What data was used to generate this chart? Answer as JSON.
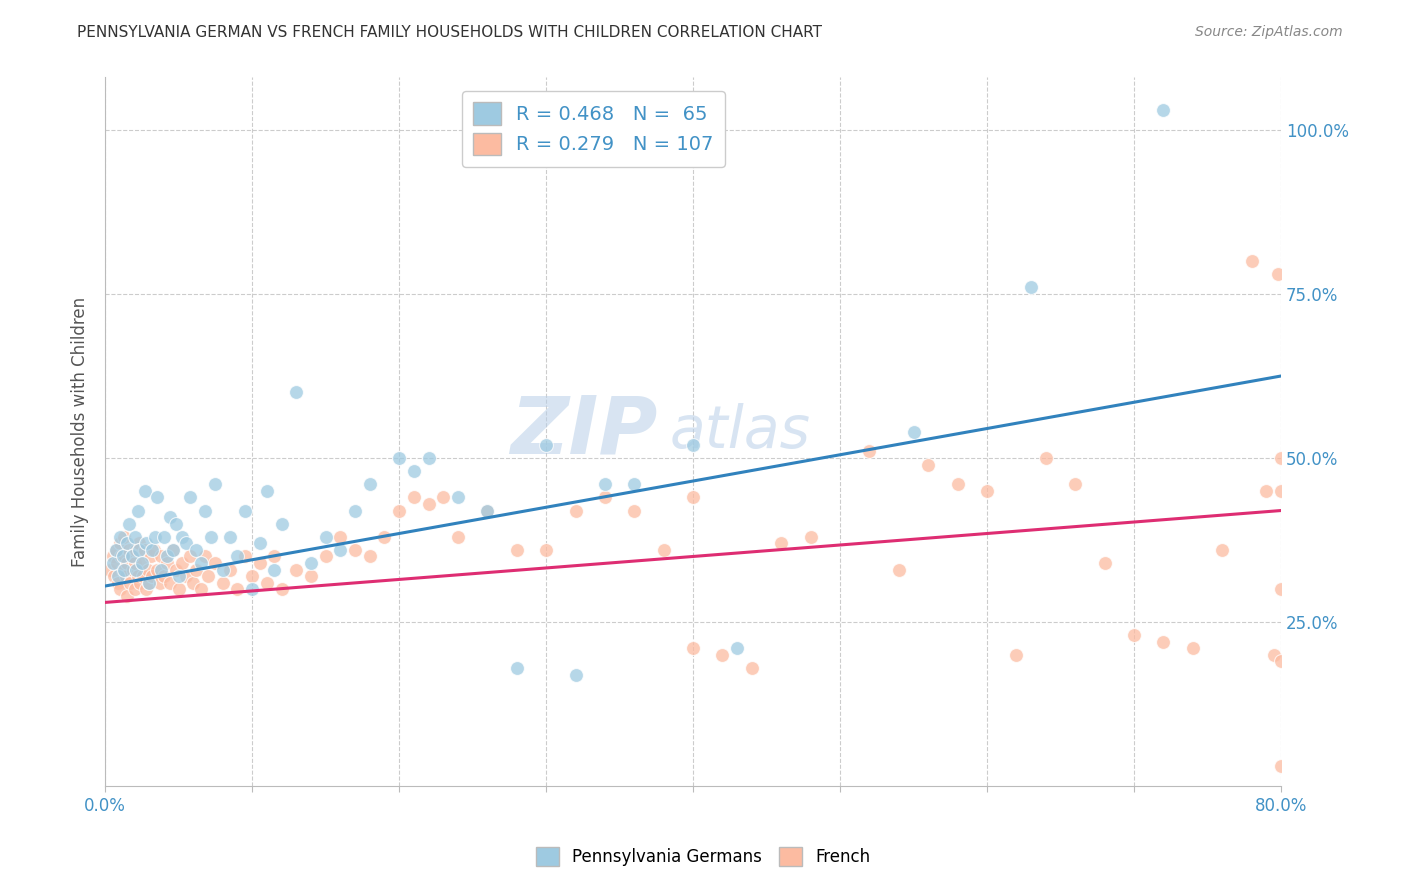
{
  "title": "PENNSYLVANIA GERMAN VS FRENCH FAMILY HOUSEHOLDS WITH CHILDREN CORRELATION CHART",
  "source": "Source: ZipAtlas.com",
  "ylabel": "Family Households with Children",
  "xlim": [
    0.0,
    0.8
  ],
  "ylim": [
    0.0,
    1.08
  ],
  "yticks": [
    0.25,
    0.5,
    0.75,
    1.0
  ],
  "ytick_labels": [
    "25.0%",
    "50.0%",
    "75.0%",
    "100.0%"
  ],
  "xticks": [
    0.0,
    0.1,
    0.2,
    0.3,
    0.4,
    0.5,
    0.6,
    0.7,
    0.8
  ],
  "xtick_labels": [
    "0.0%",
    "",
    "",
    "",
    "",
    "",
    "",
    "",
    "80.0%"
  ],
  "watermark_zip": "ZIP",
  "watermark_atlas": "atlas",
  "blue_color": "#9ecae1",
  "pink_color": "#fcbba1",
  "blue_line_color": "#3182bd",
  "pink_line_color": "#de2d72",
  "legend_R_blue": "0.468",
  "legend_N_blue": "65",
  "legend_R_pink": "0.279",
  "legend_N_pink": "107",
  "blue_scatter_x": [
    0.005,
    0.007,
    0.009,
    0.01,
    0.012,
    0.013,
    0.015,
    0.016,
    0.018,
    0.02,
    0.021,
    0.022,
    0.023,
    0.025,
    0.027,
    0.028,
    0.03,
    0.032,
    0.034,
    0.035,
    0.038,
    0.04,
    0.042,
    0.044,
    0.046,
    0.048,
    0.05,
    0.052,
    0.055,
    0.058,
    0.062,
    0.065,
    0.068,
    0.072,
    0.075,
    0.08,
    0.085,
    0.09,
    0.095,
    0.1,
    0.105,
    0.11,
    0.115,
    0.12,
    0.13,
    0.14,
    0.15,
    0.16,
    0.17,
    0.18,
    0.2,
    0.21,
    0.22,
    0.24,
    0.26,
    0.28,
    0.3,
    0.32,
    0.34,
    0.36,
    0.4,
    0.43,
    0.55,
    0.63,
    0.72
  ],
  "blue_scatter_y": [
    0.34,
    0.36,
    0.32,
    0.38,
    0.35,
    0.33,
    0.37,
    0.4,
    0.35,
    0.38,
    0.33,
    0.42,
    0.36,
    0.34,
    0.45,
    0.37,
    0.31,
    0.36,
    0.38,
    0.44,
    0.33,
    0.38,
    0.35,
    0.41,
    0.36,
    0.4,
    0.32,
    0.38,
    0.37,
    0.44,
    0.36,
    0.34,
    0.42,
    0.38,
    0.46,
    0.33,
    0.38,
    0.35,
    0.42,
    0.3,
    0.37,
    0.45,
    0.33,
    0.4,
    0.6,
    0.34,
    0.38,
    0.36,
    0.42,
    0.46,
    0.5,
    0.48,
    0.5,
    0.44,
    0.42,
    0.18,
    0.52,
    0.17,
    0.46,
    0.46,
    0.52,
    0.21,
    0.54,
    0.76,
    1.03
  ],
  "pink_scatter_x": [
    0.003,
    0.005,
    0.006,
    0.007,
    0.008,
    0.009,
    0.01,
    0.01,
    0.011,
    0.012,
    0.013,
    0.014,
    0.015,
    0.015,
    0.016,
    0.017,
    0.018,
    0.019,
    0.02,
    0.02,
    0.021,
    0.022,
    0.023,
    0.024,
    0.025,
    0.026,
    0.027,
    0.028,
    0.029,
    0.03,
    0.031,
    0.032,
    0.033,
    0.035,
    0.037,
    0.038,
    0.04,
    0.042,
    0.044,
    0.046,
    0.048,
    0.05,
    0.052,
    0.055,
    0.058,
    0.06,
    0.062,
    0.065,
    0.068,
    0.07,
    0.075,
    0.08,
    0.085,
    0.09,
    0.095,
    0.1,
    0.105,
    0.11,
    0.115,
    0.12,
    0.13,
    0.14,
    0.15,
    0.16,
    0.17,
    0.18,
    0.19,
    0.2,
    0.21,
    0.22,
    0.23,
    0.24,
    0.26,
    0.28,
    0.3,
    0.32,
    0.34,
    0.36,
    0.38,
    0.4,
    0.4,
    0.42,
    0.44,
    0.46,
    0.48,
    0.52,
    0.54,
    0.56,
    0.58,
    0.6,
    0.62,
    0.64,
    0.66,
    0.68,
    0.7,
    0.72,
    0.74,
    0.76,
    0.78,
    0.79,
    0.795,
    0.798,
    0.8,
    0.8,
    0.8,
    0.8,
    0.8
  ],
  "pink_scatter_y": [
    0.33,
    0.35,
    0.32,
    0.36,
    0.34,
    0.31,
    0.37,
    0.3,
    0.35,
    0.33,
    0.38,
    0.32,
    0.34,
    0.29,
    0.36,
    0.31,
    0.35,
    0.33,
    0.34,
    0.3,
    0.36,
    0.32,
    0.37,
    0.31,
    0.34,
    0.32,
    0.36,
    0.3,
    0.33,
    0.31,
    0.35,
    0.32,
    0.36,
    0.33,
    0.31,
    0.35,
    0.32,
    0.34,
    0.31,
    0.36,
    0.33,
    0.3,
    0.34,
    0.32,
    0.35,
    0.31,
    0.33,
    0.3,
    0.35,
    0.32,
    0.34,
    0.31,
    0.33,
    0.3,
    0.35,
    0.32,
    0.34,
    0.31,
    0.35,
    0.3,
    0.33,
    0.32,
    0.35,
    0.38,
    0.36,
    0.35,
    0.38,
    0.42,
    0.44,
    0.43,
    0.44,
    0.38,
    0.42,
    0.36,
    0.36,
    0.42,
    0.44,
    0.42,
    0.36,
    0.44,
    0.21,
    0.2,
    0.18,
    0.37,
    0.38,
    0.51,
    0.33,
    0.49,
    0.46,
    0.45,
    0.2,
    0.5,
    0.46,
    0.34,
    0.23,
    0.22,
    0.21,
    0.36,
    0.8,
    0.45,
    0.2,
    0.78,
    0.45,
    0.3,
    0.5,
    0.03,
    0.19
  ],
  "blue_trend_x": [
    0.0,
    0.8
  ],
  "blue_trend_y": [
    0.305,
    0.625
  ],
  "pink_trend_x": [
    0.0,
    0.8
  ],
  "pink_trend_y": [
    0.28,
    0.42
  ],
  "background_color": "#ffffff",
  "grid_color": "#cccccc",
  "title_color": "#333333",
  "axis_label_color": "#555555",
  "tick_label_color": "#4292c6",
  "legend_text_color": "#333333"
}
